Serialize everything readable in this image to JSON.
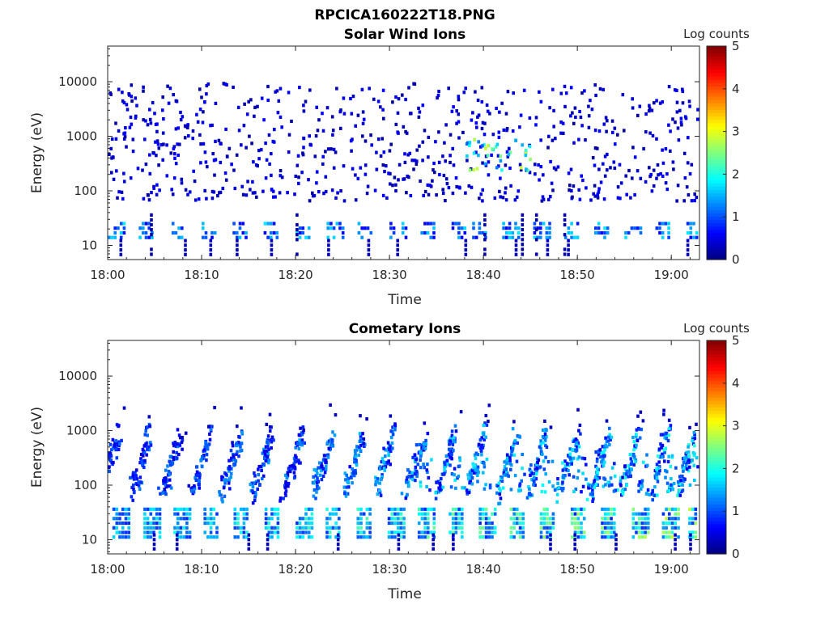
{
  "figure_title": "RPCICA160222T18.PNG",
  "chart_data": [
    {
      "type": "heatmap",
      "title": "Solar Wind Ions",
      "xlabel": "Time",
      "ylabel": "Energy (eV)",
      "x_ticks": [
        "18:00",
        "18:10",
        "18:20",
        "18:30",
        "18:40",
        "18:50",
        "19:00"
      ],
      "x_range_minutes": [
        0,
        63
      ],
      "y_ticks": [
        "10",
        "100",
        "1000",
        "10000"
      ],
      "y_scale": "log",
      "y_range_eV": [
        5.5,
        45000
      ],
      "colorbar": {
        "label": "Log counts",
        "ticks": [
          "0",
          "1",
          "2",
          "3",
          "4",
          "5"
        ],
        "range": [
          0,
          5
        ],
        "colormap": "jet"
      },
      "data_description": "Sparse ion counts; periodic bursts near 15-25 eV every ~3.3 min; scattered counts up to ~10 keV; peak ~3 log counts near 18:44 at ~500 eV",
      "bands": [
        {
          "e_min": 15,
          "e_max": 28,
          "level_max": 2.0,
          "burst_minutes": [
            0.0,
            3.3,
            6.8,
            10.0,
            13.3,
            16.6,
            20.0,
            23.3,
            26.6,
            30.0,
            33.3,
            36.6,
            38.8,
            42.0,
            45.3,
            48.6,
            51.8,
            55.0,
            58.3,
            61.6
          ]
        },
        {
          "e_min": 80,
          "e_max": 10000,
          "level_max": 3.0,
          "description": "scattered"
        }
      ]
    },
    {
      "type": "heatmap",
      "title": "Cometary Ions",
      "xlabel": "Time",
      "ylabel": "Energy (eV)",
      "x_ticks": [
        "18:00",
        "18:10",
        "18:20",
        "18:30",
        "18:40",
        "18:50",
        "19:00"
      ],
      "x_range_minutes": [
        0,
        63
      ],
      "y_ticks": [
        "10",
        "100",
        "1000",
        "10000"
      ],
      "y_scale": "log",
      "y_range_eV": [
        5.5,
        45000
      ],
      "colorbar": {
        "label": "Log counts",
        "ticks": [
          "0",
          "1",
          "2",
          "3",
          "4",
          "5"
        ],
        "range": [
          0,
          5
        ],
        "colormap": "jet"
      },
      "data_description": "Periodic bursts every ~3.3 min: low-energy band 12-40 eV reaching ~3 log counts, and dispersing streaks rising from ~100 eV to ~1500 eV",
      "bands": [
        {
          "e_min": 12,
          "e_max": 40,
          "level_max": 3.0,
          "burst_minutes": [
            0.5,
            3.8,
            7.0,
            10.2,
            13.4,
            16.7,
            20.0,
            23.2,
            26.5,
            29.8,
            33.0,
            36.3,
            39.5,
            42.8,
            46.0,
            49.3,
            52.5,
            55.8,
            59.0,
            61.8
          ]
        },
        {
          "e_min": 60,
          "e_max": 1500,
          "level_max": 2.0,
          "description": "dispersion streaks"
        }
      ]
    }
  ]
}
